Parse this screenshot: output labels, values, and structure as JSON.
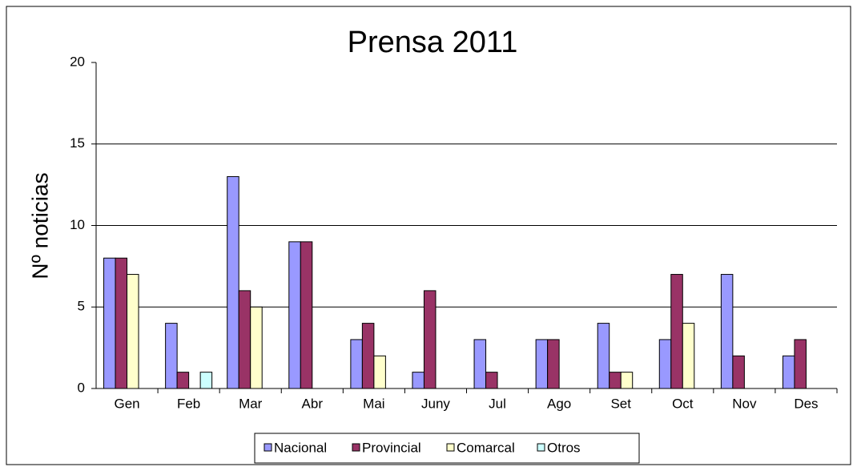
{
  "chart_data": {
    "type": "bar",
    "title": "Prensa 2011",
    "y_label": "Nº noticias",
    "categories": [
      "Gen",
      "Feb",
      "Mar",
      "Abr",
      "Mai",
      "Juny",
      "Jul",
      "Ago",
      "Set",
      "Oct",
      "Nov",
      "Des"
    ],
    "series": [
      {
        "name": "Nacional",
        "color": "#9999ff",
        "values": [
          8,
          4,
          13,
          9,
          3,
          1,
          3,
          3,
          4,
          3,
          7,
          2
        ]
      },
      {
        "name": "Provincial",
        "color": "#993366",
        "values": [
          8,
          1,
          6,
          9,
          4,
          6,
          1,
          3,
          1,
          7,
          2,
          3
        ]
      },
      {
        "name": "Comarcal",
        "color": "#ffffcc",
        "values": [
          7,
          0,
          5,
          0,
          2,
          0,
          0,
          0,
          1,
          4,
          0,
          0
        ]
      },
      {
        "name": "Otros",
        "color": "#ccffff",
        "values": [
          0,
          1,
          0,
          0,
          0,
          0,
          0,
          0,
          0,
          0,
          0,
          0
        ]
      }
    ],
    "ylim": [
      0,
      20
    ],
    "yticks": [
      0,
      5,
      10,
      15,
      20
    ],
    "grid": true,
    "legend": "bottom"
  }
}
